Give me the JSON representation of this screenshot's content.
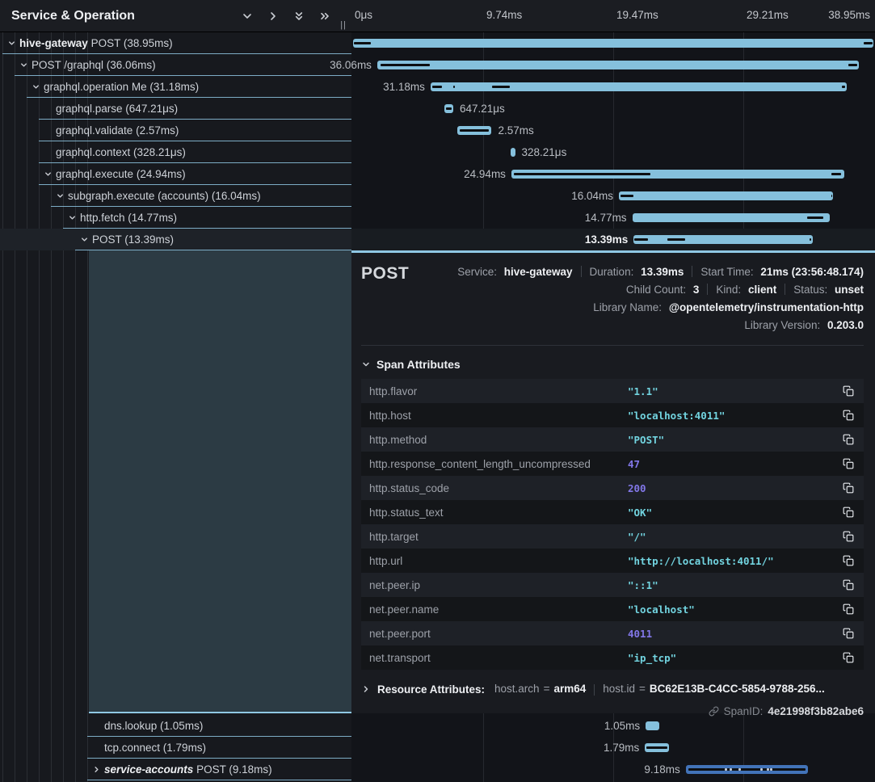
{
  "left_header": {
    "title": "Service & Operation",
    "resize_grip": "||"
  },
  "timeline": {
    "total_ms": 38.95,
    "ticks": [
      "0μs",
      "9.74ms",
      "19.47ms",
      "29.21ms",
      "38.95ms"
    ]
  },
  "rows": [
    {
      "level": 0,
      "chevron": "down",
      "service": "hive-gateway",
      "service_style": "bold",
      "text": "POST (38.95ms)",
      "start_ms": 0,
      "dur_ms": 38.95,
      "label": "38.95ms",
      "label_visible": false,
      "label_side": "left",
      "selected": false,
      "color": "default",
      "notches": [
        [
          0.002,
          0.032
        ],
        [
          0.982,
          0.016
        ]
      ],
      "dots": []
    },
    {
      "level": 1,
      "chevron": "down",
      "service": "",
      "text": "POST /graphql (36.06ms)",
      "start_ms": 1.81,
      "dur_ms": 36.06,
      "label": "36.06ms",
      "label_visible": true,
      "label_side": "left",
      "selected": false,
      "color": "default",
      "notches": [
        [
          0.007,
          0.102
        ],
        [
          0.978,
          0.018
        ]
      ],
      "dots": []
    },
    {
      "level": 2,
      "chevron": "down",
      "service": "",
      "text": "graphql.operation Me (31.18ms)",
      "start_ms": 5.8,
      "dur_ms": 31.18,
      "label": "31.18ms",
      "label_visible": true,
      "label_side": "left",
      "selected": false,
      "color": "default",
      "notches": [
        [
          0.004,
          0.023
        ],
        [
          0.054,
          0.005
        ],
        [
          0.147,
          0.044
        ],
        [
          0.988,
          0.008
        ]
      ],
      "dots": []
    },
    {
      "level": 3,
      "chevron": null,
      "service": "",
      "text": "graphql.parse (647.21μs)",
      "start_ms": 6.85,
      "dur_ms": 0.647,
      "label": "647.21μs",
      "label_visible": true,
      "label_side": "right",
      "selected": false,
      "color": "default",
      "notches": [
        [
          0.15,
          0.7
        ]
      ],
      "dots": []
    },
    {
      "level": 3,
      "chevron": null,
      "service": "",
      "text": "graphql.validate (2.57ms)",
      "start_ms": 7.8,
      "dur_ms": 2.57,
      "label": "2.57ms",
      "label_visible": true,
      "label_side": "right",
      "selected": false,
      "color": "default",
      "notches": [
        [
          0.08,
          0.84
        ]
      ],
      "dots": []
    },
    {
      "level": 3,
      "chevron": null,
      "service": "",
      "text": "graphql.context (328.21μs)",
      "start_ms": 11.8,
      "dur_ms": 0.328,
      "label": "328.21μs",
      "label_visible": true,
      "label_side": "right",
      "selected": false,
      "color": "default",
      "notches": [],
      "dots": []
    },
    {
      "level": 3,
      "chevron": "down",
      "service": "",
      "text": "graphql.execute (24.94ms)",
      "start_ms": 11.85,
      "dur_ms": 24.94,
      "label": "24.94ms",
      "label_visible": true,
      "label_side": "left",
      "selected": false,
      "color": "default",
      "notches": [
        [
          0.007,
          0.41
        ],
        [
          0.961,
          0.029
        ]
      ],
      "dots": []
    },
    {
      "level": 4,
      "chevron": "down",
      "service": "",
      "text": "subgraph.execute (accounts) (16.04ms)",
      "start_ms": 19.9,
      "dur_ms": 16.04,
      "label": "16.04ms",
      "label_visible": true,
      "label_side": "left",
      "selected": false,
      "color": "default",
      "notches": [
        [
          0.0075,
          0.06
        ],
        [
          0.99,
          0.007
        ]
      ],
      "dots": []
    },
    {
      "level": 5,
      "chevron": "down",
      "service": "",
      "text": "http.fetch (14.77ms)",
      "start_ms": 20.9,
      "dur_ms": 14.77,
      "label": "14.77ms",
      "label_visible": true,
      "label_side": "left",
      "selected": false,
      "color": "default",
      "notches": [
        [
          0.885,
          0.085
        ]
      ],
      "dots": []
    },
    {
      "level": 6,
      "chevron": "down",
      "service": "",
      "text": "POST (13.39ms)",
      "start_ms": 21.0,
      "dur_ms": 13.39,
      "label": "13.39ms",
      "label_visible": true,
      "label_side": "left",
      "selected": true,
      "color": "default",
      "notches": [
        [
          0.005,
          0.075
        ],
        [
          0.19,
          0.1
        ],
        [
          0.985,
          0.008
        ]
      ],
      "dots": []
    },
    {
      "level": 7,
      "chevron": null,
      "service": "",
      "text": "dns.lookup (1.05ms)",
      "start_ms": 21.9,
      "dur_ms": 1.05,
      "label": "1.05ms",
      "label_visible": true,
      "label_side": "left",
      "selected": false,
      "color": "default",
      "notches": [],
      "dots": []
    },
    {
      "level": 7,
      "chevron": null,
      "service": "",
      "text": "tcp.connect (1.79ms)",
      "start_ms": 21.85,
      "dur_ms": 1.79,
      "label": "1.79ms",
      "label_visible": true,
      "label_side": "left",
      "selected": false,
      "color": "default",
      "notches": [
        [
          0.07,
          0.86
        ]
      ],
      "dots": []
    },
    {
      "level": 7,
      "chevron": "right",
      "service": "service-accounts",
      "service_style": "bold-italic",
      "text": "POST (9.18ms)",
      "start_ms": 24.9,
      "dur_ms": 9.18,
      "label": "9.18ms",
      "label_visible": true,
      "label_side": "left",
      "selected": false,
      "color": "alt",
      "notches": [
        [
          0.02,
          0.96
        ]
      ],
      "dots": [
        0.32,
        0.36,
        0.43,
        0.61,
        0.66,
        0.69
      ]
    }
  ],
  "detail": {
    "title": "POST",
    "meta_lines": [
      [
        {
          "label": "Service:",
          "value": "hive-gateway"
        },
        {
          "label": "Duration:",
          "value": "13.39ms"
        },
        {
          "label": "Start Time:",
          "value": "21ms (23:56:48.174)"
        }
      ],
      [
        {
          "label": "Child Count:",
          "value": "3"
        },
        {
          "label": "Kind:",
          "value": "client"
        },
        {
          "label": "Status:",
          "value": "unset"
        }
      ],
      [
        {
          "label": "Library Name:",
          "value": "@opentelemetry/instrumentation-http"
        }
      ],
      [
        {
          "label": "Library Version:",
          "value": "0.203.0"
        }
      ]
    ],
    "span_attributes": {
      "title": "Span Attributes",
      "rows": [
        {
          "key": "http.flavor",
          "value": "\"1.1\"",
          "type": "str"
        },
        {
          "key": "http.host",
          "value": "\"localhost:4011\"",
          "type": "str"
        },
        {
          "key": "http.method",
          "value": "\"POST\"",
          "type": "str"
        },
        {
          "key": "http.response_content_length_uncompressed",
          "value": "47",
          "type": "num"
        },
        {
          "key": "http.status_code",
          "value": "200",
          "type": "num"
        },
        {
          "key": "http.status_text",
          "value": "\"OK\"",
          "type": "str"
        },
        {
          "key": "http.target",
          "value": "\"/\"",
          "type": "str"
        },
        {
          "key": "http.url",
          "value": "\"http://localhost:4011/\"",
          "type": "str"
        },
        {
          "key": "net.peer.ip",
          "value": "\"::1\"",
          "type": "str"
        },
        {
          "key": "net.peer.name",
          "value": "\"localhost\"",
          "type": "str"
        },
        {
          "key": "net.peer.port",
          "value": "4011",
          "type": "num"
        },
        {
          "key": "net.transport",
          "value": "\"ip_tcp\"",
          "type": "str"
        }
      ]
    },
    "resource_attributes": {
      "title": "Resource Attributes:",
      "items": [
        {
          "key": "host.arch",
          "value": "arm64"
        },
        {
          "key": "host.id",
          "value": "BC62E13B-C4CC-5854-9788-256..."
        }
      ]
    },
    "span_id": {
      "label": "SpanID:",
      "value": "4e21998f3b82abe6"
    }
  },
  "icons": {
    "header": [
      "chevron-down",
      "chevron-right",
      "chevrons-down",
      "chevrons-right"
    ],
    "attribute_row": "copy",
    "span_id": "link"
  }
}
